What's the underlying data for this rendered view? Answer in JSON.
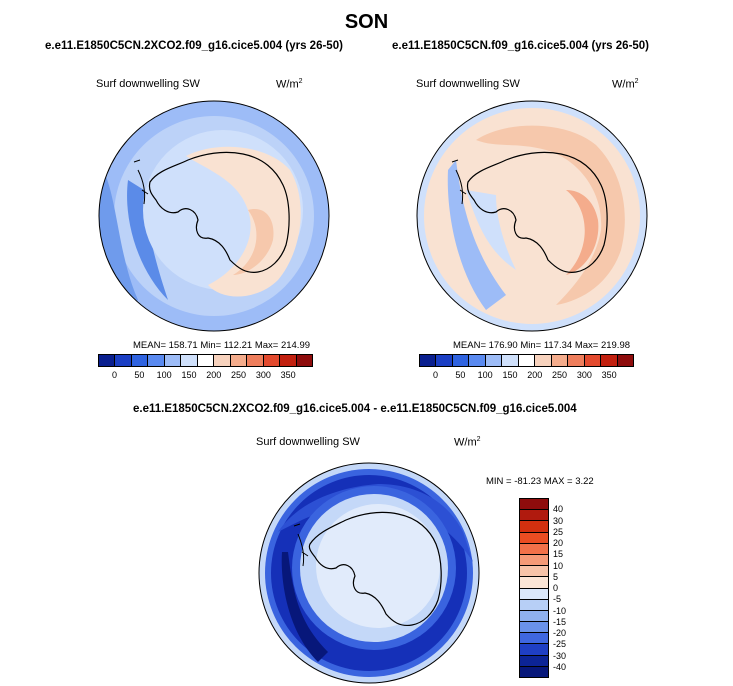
{
  "page_title": "SON",
  "left_panel": {
    "case_title": "e.e11.E1850C5CN.2XCO2.f09_g16.cice5.004 (yrs 26-50)",
    "variable": "Surf downwelling SW",
    "units": "W/m",
    "units_sup": "2",
    "stats": "MEAN= 158.71  Min= 112.21  Max= 214.99"
  },
  "right_panel": {
    "case_title": "e.e11.E1850C5CN.f09_g16.cice5.004 (yrs 26-50)",
    "variable": "Surf downwelling SW",
    "units": "W/m",
    "units_sup": "2",
    "stats": "MEAN= 176.90  Min= 117.34  Max= 219.98"
  },
  "diff_panel": {
    "case_title": "e.e11.E1850C5CN.2XCO2.f09_g16.cice5.004 - e.e11.E1850C5CN.f09_g16.cice5.004",
    "variable": "Surf downwelling SW",
    "units": "W/m",
    "units_sup": "2",
    "stats": "MIN = -81.23  MAX =   3.22"
  },
  "field_colorbar": {
    "tick_labels": [
      "0",
      "50",
      "100",
      "150",
      "200",
      "250",
      "300",
      "350"
    ],
    "colors": [
      "#0a1f8f",
      "#1b3fc4",
      "#2f63e0",
      "#5a8af0",
      "#9dbcf7",
      "#cfe0fb",
      "#ffffff",
      "#f7d2bd",
      "#f4ac8c",
      "#ef7e5c",
      "#e34a2e",
      "#c2200f",
      "#8e0c0c"
    ]
  },
  "diff_colorbar": {
    "tick_labels": [
      "40",
      "30",
      "25",
      "20",
      "15",
      "10",
      "5",
      "0",
      "-5",
      "-10",
      "-15",
      "-20",
      "-25",
      "-30",
      "-40"
    ],
    "colors": [
      "#8e0c0c",
      "#b01a0e",
      "#d2300f",
      "#ea4d22",
      "#f27149",
      "#f59a77",
      "#f7c3a8",
      "#fbe5d6",
      "#dbe8fb",
      "#b7cff6",
      "#8fb1ef",
      "#6a92ea",
      "#3f67e0",
      "#1f3fc4",
      "#0c2496",
      "#07177a"
    ]
  },
  "map_colors": {
    "ocean_high_dark": "#5b8be8",
    "ocean_high_mid": "#9dbcf7",
    "ocean_light": "#cfe0fb",
    "neutral": "#e8f0fc",
    "warm_light": "#f9e2d2",
    "warm_mid": "#f6c8ac",
    "diff_deep": "#1530b8",
    "diff_mid": "#3a64df",
    "diff_light": "#c4d8f8",
    "diff_pale": "#e1ebfb"
  }
}
